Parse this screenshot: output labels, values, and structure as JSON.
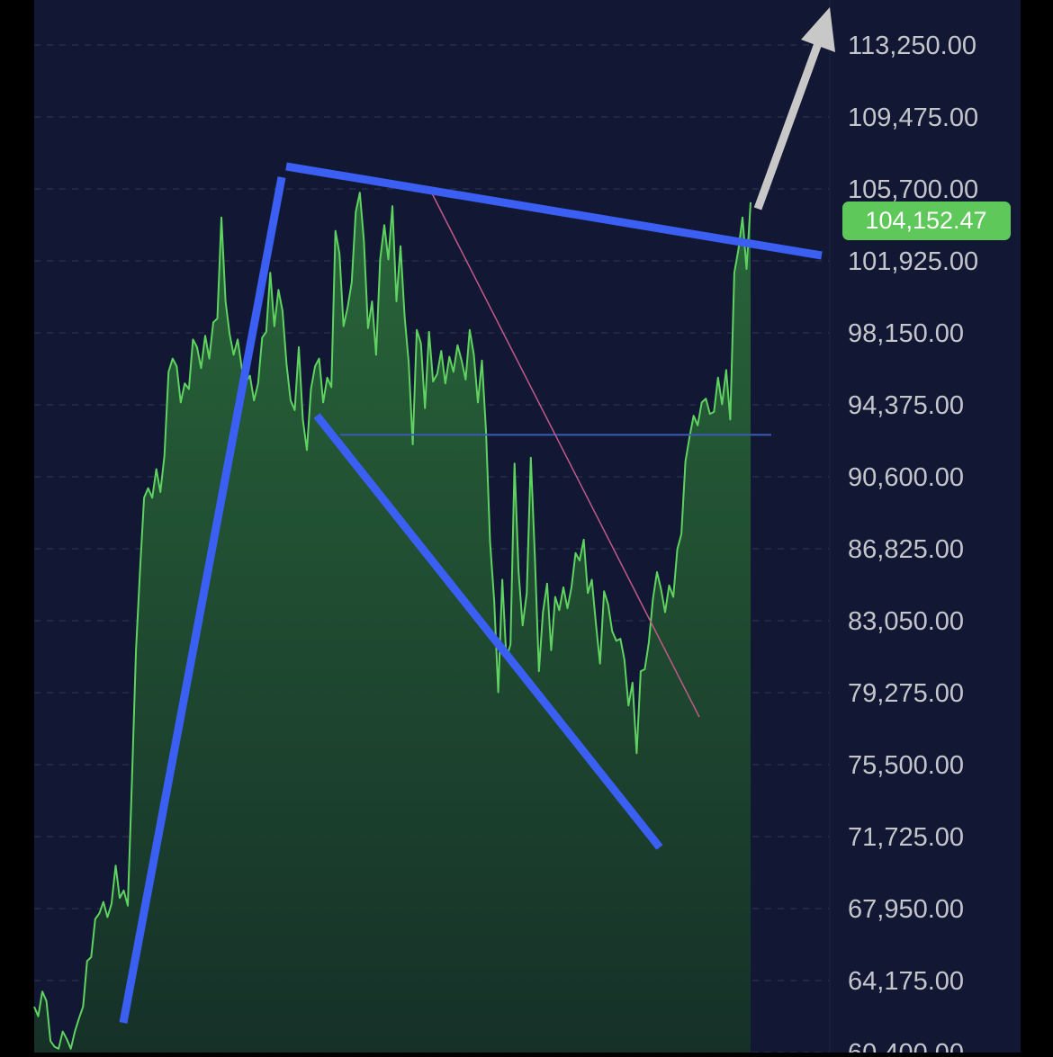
{
  "chart_data": {
    "type": "area",
    "title": "",
    "xlabel": "",
    "ylabel": "",
    "ylim": [
      60400,
      113250
    ],
    "y_ticks": [
      "113,250.00",
      "109,475.00",
      "105,700.00",
      "101,925.00",
      "98,150.00",
      "94,375.00",
      "90,600.00",
      "86,825.00",
      "83,050.00",
      "79,275.00",
      "75,500.00",
      "71,725.00",
      "67,950.00",
      "64,175.00",
      "60,400.00"
    ],
    "last_price_label": "104,152.47",
    "last_price": 104152.47,
    "grid": true,
    "series": [
      {
        "values": [
          62800,
          62300,
          63600,
          63100,
          61000,
          60700,
          60600,
          61500,
          61100,
          60600,
          61500,
          62200,
          62800,
          65200,
          65400,
          67400,
          67700,
          68300,
          67500,
          68200,
          70200,
          68500,
          68900,
          68100,
          74500,
          81500,
          85700,
          89500,
          90000,
          89500,
          91000,
          89800,
          91700,
          96100,
          96800,
          96400,
          94500,
          95500,
          95200,
          97800,
          97400,
          96300,
          98000,
          96800,
          98700,
          98900,
          104200,
          99800,
          98100,
          97000,
          97800,
          96300,
          95600,
          95900,
          94600,
          95500,
          97900,
          98200,
          101300,
          98500,
          100400,
          99300,
          96500,
          94600,
          94100,
          97400,
          93600,
          92000,
          95200,
          96400,
          96800,
          94500,
          95800,
          95300,
          103500,
          102300,
          98500,
          99500,
          100800,
          104500,
          105500,
          103000,
          98400,
          99800,
          97000,
          102000,
          103800,
          102000,
          104800,
          99800,
          102700,
          99000,
          96600,
          92300,
          98300,
          97600,
          94200,
          98200,
          95600,
          96000,
          97200,
          95500,
          96900,
          96100,
          97500,
          96700,
          95700,
          98300,
          97000,
          94500,
          96700,
          93000,
          87200,
          84100,
          79300,
          85200,
          81100,
          81800,
          91300,
          85600,
          82800,
          84500,
          91600,
          86400,
          80400,
          83500,
          85000,
          81500,
          84300,
          83600,
          84800,
          83700,
          84800,
          86600,
          86200,
          87300,
          84500,
          85200,
          82900,
          80800,
          84600,
          83900,
          82500,
          82000,
          82100,
          81000,
          78600,
          79800,
          76100,
          80400,
          80500,
          81900,
          84200,
          85600,
          84700,
          83500,
          84900,
          84300,
          86800,
          87600,
          91400,
          92700,
          93800,
          93300,
          94500,
          94700,
          93900,
          94000,
          95800,
          94400,
          96200,
          93600,
          101300,
          102500,
          104200,
          101500,
          105000
        ],
        "color": "#5fd35f"
      }
    ],
    "annotations": {
      "colors": {
        "background": "#121833",
        "trendline": "#3a5ff2",
        "price_line": "#5fd35f",
        "area_fill": "#1f4a2e",
        "support_line": "#3b5bb5",
        "magenta_line": "#c05a8a",
        "arrow": "#c8c8c8",
        "label_bg": "#5fc85a",
        "axis_text": "#c4c6cc"
      },
      "horizontal_level": 92800
    }
  }
}
